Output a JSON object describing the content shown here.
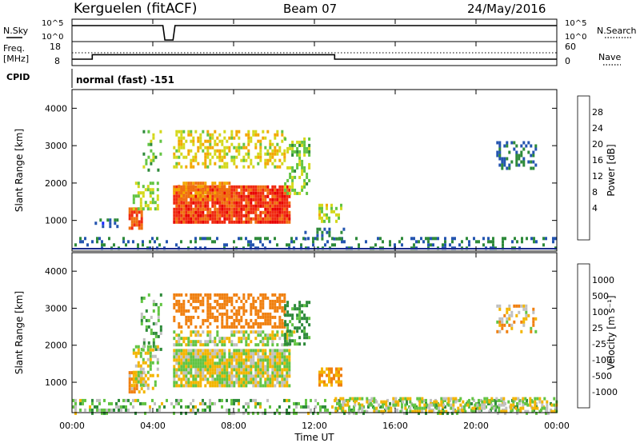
{
  "header": {
    "title": "Kerguelen (fitACF)",
    "beam": "Beam 07",
    "date": "24/May/2016"
  },
  "nsky_panel": {
    "left_label": "N.Sky",
    "left_ticks": [
      "10^5",
      "10^0"
    ],
    "right_label": "N.Search",
    "right_ticks": [
      "10^5",
      "10^0"
    ]
  },
  "freq_panel": {
    "left_label_line1": "Freq.",
    "left_label_line2": "[MHz]",
    "left_ticks": [
      "18",
      "8"
    ],
    "right_label": "Nave",
    "right_ticks": [
      "60",
      "0"
    ]
  },
  "cpid": {
    "label": "CPID",
    "value": "normal (fast) -151"
  },
  "power_panel": {
    "ylabel": "Slant Range [km]",
    "yticks": [
      "4000",
      "3000",
      "2000",
      "1000"
    ],
    "colorbar_label": "Power [dB]",
    "colorbar_ticks": [
      "28",
      "24",
      "20",
      "16",
      "12",
      "8",
      "4"
    ],
    "colors": [
      "#1a28ff",
      "#2455b0",
      "#2e8a3a",
      "#62c443",
      "#d4d81c",
      "#f3a800",
      "#f07010",
      "#f02a10",
      "#e80000"
    ]
  },
  "velocity_panel": {
    "ylabel": "Slant Range [km]",
    "yticks": [
      "4000",
      "3000",
      "2000",
      "1000"
    ],
    "colorbar_label": "Velocity [m s⁻¹]",
    "colorbar_ticks": [
      "1000",
      "500",
      "100",
      "25",
      "-25",
      "-100",
      "-500",
      "-1000"
    ],
    "colors": [
      "#1c2fc8",
      "#2570b0",
      "#2e8a3a",
      "#62c443",
      "#c0c0c0",
      "#f3b500",
      "#f08010",
      "#f03a10",
      "#e80000"
    ]
  },
  "time_axis": {
    "label": "Time UT",
    "ticks": [
      "00:00",
      "04:00",
      "08:00",
      "12:00",
      "16:00",
      "20:00",
      "00:00"
    ]
  },
  "chart_data": [
    {
      "type": "line",
      "name": "nsky",
      "x": [
        0,
        4.5,
        4.6,
        5.0,
        5.1,
        24
      ],
      "values": [
        5,
        5,
        0,
        0,
        5,
        5
      ],
      "gaps_hours": [
        [
          4.5,
          5.0
        ]
      ]
    },
    {
      "type": "line",
      "name": "frequency",
      "x": [
        0,
        1.0,
        1.0,
        4.5,
        5.0,
        13.0,
        13.0,
        24
      ],
      "values": [
        10.5,
        10.5,
        12.5,
        12.5,
        12.5,
        12.5,
        10.5,
        10.5
      ],
      "ylim": [
        8,
        18
      ]
    },
    {
      "type": "heatmap",
      "name": "power",
      "xlim": [
        0,
        24
      ],
      "ylim": [
        180,
        4500
      ],
      "units": "dB",
      "clim": [
        0,
        32
      ],
      "regions": [
        {
          "t0": 0.0,
          "t1": 24.0,
          "r0": 200,
          "r1": 500,
          "v": 6,
          "density": 0.28
        },
        {
          "t0": 1.0,
          "t1": 2.2,
          "r0": 800,
          "r1": 1000,
          "v": 5,
          "density": 0.35
        },
        {
          "t0": 2.8,
          "t1": 3.4,
          "r0": 750,
          "r1": 1300,
          "v": 26,
          "density": 0.85
        },
        {
          "t0": 3.0,
          "t1": 4.2,
          "r0": 1300,
          "r1": 2000,
          "v": 14,
          "density": 0.4
        },
        {
          "t0": 3.5,
          "t1": 4.4,
          "r0": 2200,
          "r1": 3400,
          "v": 12,
          "density": 0.25
        },
        {
          "t0": 5.0,
          "t1": 10.8,
          "r0": 900,
          "r1": 1900,
          "v": 27,
          "density": 0.92
        },
        {
          "t0": 5.0,
          "t1": 7.8,
          "r0": 1500,
          "r1": 2000,
          "v": 22,
          "density": 0.7
        },
        {
          "t0": 5.0,
          "t1": 10.5,
          "r0": 2400,
          "r1": 3400,
          "v": 17,
          "density": 0.45
        },
        {
          "t0": 10.5,
          "t1": 11.8,
          "r0": 1700,
          "r1": 3200,
          "v": 13,
          "density": 0.38
        },
        {
          "t0": 12.2,
          "t1": 13.3,
          "r0": 900,
          "r1": 1400,
          "v": 15,
          "density": 0.6
        },
        {
          "t0": 11.5,
          "t1": 13.5,
          "r0": 450,
          "r1": 750,
          "v": 6,
          "density": 0.3
        },
        {
          "t0": 21.0,
          "t1": 23.0,
          "r0": 2400,
          "r1": 3100,
          "v": 6,
          "density": 0.35
        }
      ]
    },
    {
      "type": "heatmap",
      "name": "velocity",
      "xlim": [
        0,
        24
      ],
      "ylim": [
        180,
        4500
      ],
      "units": "m s-1",
      "clim": [
        -1000,
        1000
      ],
      "regions": [
        {
          "t0": 0.0,
          "t1": 24.0,
          "r0": 200,
          "r1": 550,
          "v": 60,
          "density": 0.35
        },
        {
          "t0": 2.8,
          "t1": 3.6,
          "r0": 750,
          "r1": 1300,
          "v": -80,
          "density": 0.7
        },
        {
          "t0": 3.4,
          "t1": 4.4,
          "r0": 1900,
          "r1": 3400,
          "v": 80,
          "density": 0.3
        },
        {
          "t0": 3.0,
          "t1": 4.3,
          "r0": 800,
          "r1": 2000,
          "v": 0,
          "density": 0.5
        },
        {
          "t0": 5.0,
          "t1": 10.8,
          "r0": 900,
          "r1": 1900,
          "v": 0,
          "density": 0.9
        },
        {
          "t0": 5.0,
          "t1": 11.0,
          "r0": 2000,
          "r1": 2400,
          "v": 0,
          "density": 0.6
        },
        {
          "t0": 5.0,
          "t1": 10.5,
          "r0": 2500,
          "r1": 3400,
          "v": -250,
          "density": 0.55
        },
        {
          "t0": 10.5,
          "t1": 11.8,
          "r0": 2000,
          "r1": 3200,
          "v": 150,
          "density": 0.45
        },
        {
          "t0": 12.2,
          "t1": 13.3,
          "r0": 900,
          "r1": 1400,
          "v": -120,
          "density": 0.6
        },
        {
          "t0": 13.0,
          "t1": 24.0,
          "r0": 200,
          "r1": 600,
          "v": 0,
          "density": 0.55
        },
        {
          "t0": 21.0,
          "t1": 23.0,
          "r0": 2400,
          "r1": 3100,
          "v": -60,
          "density": 0.35
        }
      ]
    }
  ]
}
